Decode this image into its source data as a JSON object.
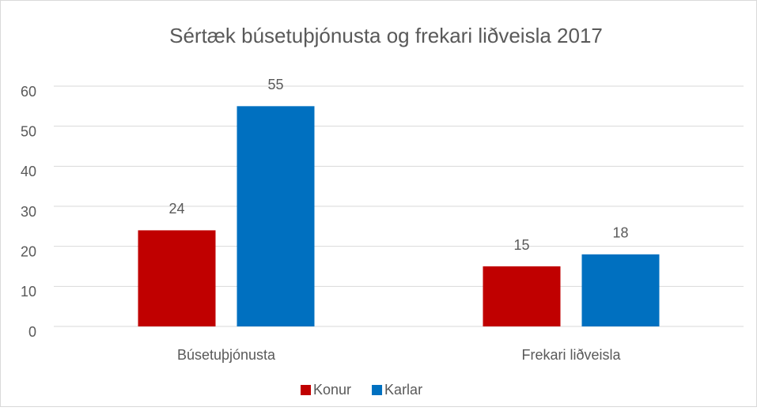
{
  "chart_data": {
    "type": "bar",
    "title": "Sértæk búsetuþjónusta og frekari liðveisla 2017",
    "categories": [
      "Búsetuþjónusta",
      "Frekari liðveisla"
    ],
    "series": [
      {
        "name": "Konur",
        "color": "#c00000",
        "values": [
          24,
          15
        ]
      },
      {
        "name": "Karlar",
        "color": "#0070c0",
        "values": [
          55,
          18
        ]
      }
    ],
    "ylim": [
      0,
      60
    ],
    "yticks": [
      0,
      10,
      20,
      30,
      40,
      50,
      60
    ],
    "grid": true,
    "legend": "bottom",
    "data_labels": true
  }
}
